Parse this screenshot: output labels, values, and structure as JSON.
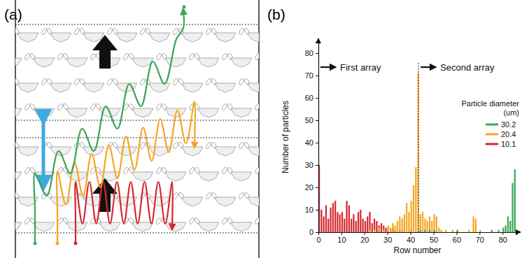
{
  "diagram": {
    "label": "(a)"
  },
  "chart_data": {
    "type": "bar",
    "panel_label": "(b)",
    "x_label": "Row number",
    "y_label": "Number of particles",
    "annotations": [
      "First array",
      "Second array"
    ],
    "array_boundary": 43.5,
    "xlim": [
      0,
      86
    ],
    "xticks": [
      0,
      10,
      20,
      30,
      40,
      50,
      60,
      70,
      80
    ],
    "ylim": [
      0,
      85
    ],
    "yticks": [
      0,
      10,
      20,
      30,
      40,
      50,
      60,
      70,
      80
    ],
    "grid": false,
    "legend": "right",
    "legend_title": [
      "Particle diameter",
      "(um)"
    ],
    "x": [
      0,
      1,
      2,
      3,
      4,
      5,
      6,
      7,
      8,
      9,
      10,
      11,
      12,
      13,
      14,
      15,
      16,
      17,
      18,
      19,
      20,
      21,
      22,
      23,
      24,
      25,
      26,
      27,
      28,
      29,
      30,
      31,
      32,
      33,
      34,
      35,
      36,
      37,
      38,
      39,
      40,
      41,
      42,
      43,
      44,
      45,
      46,
      47,
      48,
      49,
      50,
      51,
      52,
      53,
      54,
      55,
      56,
      57,
      58,
      59,
      60,
      61,
      62,
      63,
      64,
      65,
      66,
      67,
      68,
      69,
      70,
      71,
      72,
      73,
      74,
      75,
      76,
      77,
      78,
      79,
      80,
      81,
      82,
      83,
      84,
      85
    ],
    "series": [
      {
        "name": "30.2",
        "color": "#3aa757",
        "values": [
          0,
          0,
          0,
          0,
          0,
          0,
          0,
          0,
          0,
          0,
          0,
          0,
          0,
          0,
          0,
          0,
          0,
          0,
          0,
          0,
          0,
          0,
          0,
          0,
          0,
          0,
          0,
          0,
          0,
          0,
          0,
          0,
          0,
          0,
          0,
          0,
          0,
          0,
          0,
          0,
          0,
          0,
          0,
          0,
          1,
          0,
          1,
          0,
          1,
          0,
          1,
          0,
          0,
          0,
          0,
          0,
          0,
          0,
          0,
          0,
          1,
          0,
          0,
          0,
          0,
          0,
          0,
          0,
          0,
          0,
          0,
          0,
          0,
          0,
          0,
          1,
          0,
          0,
          1,
          0,
          2,
          3,
          7,
          5,
          22,
          28
        ]
      },
      {
        "name": "20.4",
        "color": "#f5a524",
        "values": [
          0,
          0,
          0,
          0,
          0,
          0,
          0,
          0,
          0,
          0,
          0,
          0,
          0,
          0,
          0,
          0,
          0,
          0,
          0,
          0,
          0,
          0,
          1,
          0,
          1,
          0,
          2,
          0,
          1,
          0,
          3,
          2,
          4,
          3,
          5,
          7,
          6,
          8,
          13,
          9,
          14,
          21,
          29,
          71,
          8,
          9,
          6,
          5,
          7,
          5,
          8,
          7,
          2,
          1,
          0,
          1,
          0,
          0,
          1,
          0,
          1,
          0,
          0,
          0,
          0,
          1,
          0,
          7,
          6,
          0,
          1,
          0,
          0,
          0,
          0,
          0,
          0,
          0,
          0,
          0,
          0,
          0,
          0,
          0,
          0,
          0
        ]
      },
      {
        "name": "10.1",
        "color": "#d7262f",
        "values": [
          30,
          10,
          7,
          12,
          6,
          11,
          13,
          14,
          9,
          8,
          9,
          6,
          14,
          12,
          6,
          8,
          5,
          9,
          10,
          6,
          5,
          7,
          9,
          4,
          6,
          5,
          3,
          4,
          3,
          2,
          2,
          1,
          2,
          1,
          1,
          1,
          0,
          1,
          0,
          0,
          1,
          0,
          0,
          0,
          0,
          0,
          0,
          0,
          0,
          0,
          0,
          0,
          0,
          0,
          0,
          0,
          0,
          0,
          0,
          0,
          0,
          0,
          0,
          0,
          0,
          0,
          0,
          0,
          0,
          0,
          0,
          0,
          0,
          0,
          0,
          0,
          0,
          0,
          0,
          0,
          0,
          0,
          0,
          0,
          0,
          0
        ]
      }
    ]
  }
}
